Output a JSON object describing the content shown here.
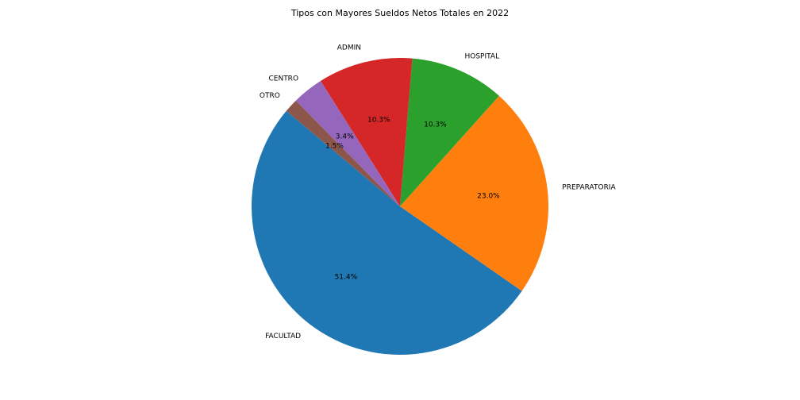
{
  "chart_data": {
    "type": "pie",
    "title": "Tipos con Mayores Sueldos Netos Totales en 2022",
    "slices": [
      {
        "label": "FACULTAD",
        "value": 51.4,
        "pct_text": "51.4%",
        "color": "#1f77b4"
      },
      {
        "label": "PREPARATORIA",
        "value": 23.0,
        "pct_text": "23.0%",
        "color": "#ff7f0e"
      },
      {
        "label": "HOSPITAL",
        "value": 10.3,
        "pct_text": "10.3%",
        "color": "#2ca02c"
      },
      {
        "label": "ADMIN",
        "value": 10.3,
        "pct_text": "10.3%",
        "color": "#d62728"
      },
      {
        "label": "CENTRO",
        "value": 3.4,
        "pct_text": "3.4%",
        "color": "#9467bd"
      },
      {
        "label": "OTRO",
        "value": 1.5,
        "pct_text": "1.5%",
        "color": "#8c564b"
      }
    ],
    "start_angle_deg": 140,
    "direction": "clockwise",
    "legend": "none"
  }
}
